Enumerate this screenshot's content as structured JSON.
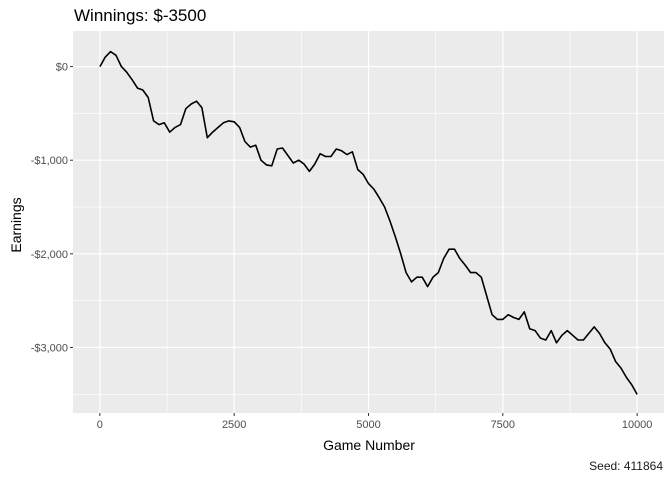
{
  "chart_data": {
    "type": "line",
    "title": "Winnings: $-3500",
    "xlabel": "Game Number",
    "ylabel": "Earnings",
    "caption": "Seed: 411864",
    "xlim": [
      -500,
      10500
    ],
    "ylim": [
      -3700,
      380
    ],
    "x_ticks": [
      0,
      2500,
      5000,
      7500,
      10000
    ],
    "x_tick_labels": [
      "0",
      "2500",
      "5000",
      "7500",
      "10000"
    ],
    "y_ticks": [
      0,
      -1000,
      -2000,
      -3000
    ],
    "y_tick_labels": [
      "$0",
      "-$1,000",
      "-$2,000",
      "-$3,000"
    ],
    "grid": true,
    "panel_color": "#ebebeb",
    "line_color": "#000000",
    "series": [
      {
        "x": [
          0,
          100,
          200,
          300,
          400,
          500,
          600,
          700,
          800,
          900,
          1000,
          1100,
          1200,
          1300,
          1400,
          1500,
          1600,
          1700,
          1800,
          1900,
          2000,
          2100,
          2200,
          2300,
          2400,
          2500,
          2600,
          2700,
          2800,
          2900,
          3000,
          3100,
          3200,
          3300,
          3400,
          3500,
          3600,
          3700,
          3800,
          3900,
          4000,
          4100,
          4200,
          4300,
          4400,
          4500,
          4600,
          4700,
          4800,
          4900,
          5000,
          5100,
          5200,
          5300,
          5400,
          5500,
          5600,
          5700,
          5800,
          5900,
          6000,
          6100,
          6200,
          6300,
          6400,
          6500,
          6600,
          6700,
          6800,
          6900,
          7000,
          7100,
          7200,
          7300,
          7400,
          7500,
          7600,
          7700,
          7800,
          7900,
          8000,
          8100,
          8200,
          8300,
          8400,
          8500,
          8600,
          8700,
          8800,
          8900,
          9000,
          9100,
          9200,
          9300,
          9400,
          9500,
          9600,
          9700,
          9800,
          9900,
          10000
        ],
        "y": [
          0,
          100,
          160,
          120,
          0,
          -60,
          -140,
          -230,
          -250,
          -330,
          -580,
          -620,
          -600,
          -700,
          -650,
          -620,
          -450,
          -400,
          -370,
          -440,
          -760,
          -700,
          -650,
          -600,
          -580,
          -590,
          -650,
          -800,
          -860,
          -840,
          -1000,
          -1050,
          -1060,
          -880,
          -870,
          -950,
          -1030,
          -1000,
          -1040,
          -1120,
          -1040,
          -930,
          -960,
          -960,
          -880,
          -900,
          -940,
          -910,
          -1100,
          -1150,
          -1250,
          -1310,
          -1400,
          -1500,
          -1650,
          -1820,
          -2000,
          -2200,
          -2300,
          -2250,
          -2250,
          -2350,
          -2250,
          -2200,
          -2050,
          -1950,
          -1950,
          -2050,
          -2120,
          -2200,
          -2200,
          -2250,
          -2450,
          -2650,
          -2700,
          -2700,
          -2650,
          -2680,
          -2700,
          -2620,
          -2800,
          -2820,
          -2900,
          -2920,
          -2820,
          -2950,
          -2870,
          -2820,
          -2870,
          -2920,
          -2920,
          -2850,
          -2780,
          -2850,
          -2950,
          -3020,
          -3150,
          -3220,
          -3320,
          -3400,
          -3500
        ]
      }
    ]
  }
}
